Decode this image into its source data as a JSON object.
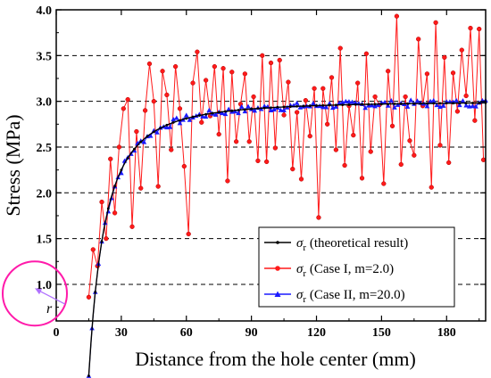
{
  "chart_data": {
    "type": "line",
    "xlabel": "Distance from the hole center (mm)",
    "ylabel": "Stress (MPa)",
    "xlim": [
      0,
      198
    ],
    "ylim": [
      0.6,
      4.0
    ],
    "x_ticks": [
      "0",
      "30",
      "60",
      "90",
      "120",
      "150",
      "180"
    ],
    "y_ticks": [
      "1.0",
      "1.5",
      "2.0",
      "2.5",
      "3.0",
      "3.5",
      "4.0"
    ],
    "grid": "horizontal-dashed",
    "legend_position": "bottom-right",
    "hole_radius_mm": 15,
    "radius_label": "r",
    "series": [
      {
        "name": "σr (theoretical result)",
        "legend_symbol": "σ",
        "legend_subscript": "r",
        "legend_suffix": " (theoretical result)",
        "color": "#000000",
        "marker": "dot",
        "x_start": 15,
        "x_end": 198,
        "x_step": 1,
        "formula": "3*(1 - (15/x)^2)"
      },
      {
        "name": "σr (Case I, m=2.0)",
        "legend_symbol": "σ",
        "legend_subscript": "r",
        "legend_suffix": " (Case I, m=2.0)",
        "color": "#ff1a1a",
        "marker": "circle",
        "x": [
          15,
          17,
          19,
          21,
          23,
          25,
          27,
          29,
          31,
          33,
          35,
          37,
          39,
          41,
          43,
          45,
          47,
          49,
          51,
          53,
          55,
          57,
          59,
          61,
          63,
          65,
          67,
          69,
          71,
          73,
          75,
          77,
          79,
          81,
          83,
          85,
          87,
          89,
          91,
          93,
          95,
          97,
          99,
          101,
          103,
          105,
          107,
          109,
          111,
          113,
          115,
          117,
          119,
          121,
          123,
          125,
          127,
          129,
          131,
          133,
          135,
          137,
          139,
          141,
          143,
          145,
          147,
          149,
          151,
          153,
          155,
          157,
          159,
          161,
          163,
          165,
          167,
          169,
          171,
          173,
          175,
          177,
          179,
          181,
          183,
          185,
          187,
          189,
          191,
          193,
          195,
          197
        ],
        "values": [
          0.86,
          1.38,
          1.2,
          1.9,
          1.5,
          2.37,
          1.78,
          2.5,
          2.92,
          3.02,
          1.63,
          2.67,
          2.05,
          2.9,
          3.41,
          3.0,
          2.07,
          3.33,
          3.07,
          2.47,
          3.38,
          2.92,
          2.29,
          1.55,
          3.2,
          3.54,
          2.77,
          3.23,
          2.84,
          3.38,
          2.64,
          3.36,
          2.13,
          3.32,
          2.56,
          2.97,
          3.3,
          2.56,
          3.05,
          2.35,
          3.5,
          2.34,
          3.42,
          2.49,
          3.45,
          2.85,
          3.21,
          2.26,
          2.88,
          2.15,
          3.01,
          2.62,
          3.14,
          1.73,
          3.14,
          2.75,
          3.26,
          2.47,
          3.58,
          2.3,
          2.95,
          2.63,
          3.2,
          2.16,
          3.52,
          2.45,
          3.05,
          2.96,
          2.1,
          3.33,
          2.73,
          3.93,
          2.31,
          3.05,
          2.57,
          2.41,
          3.68,
          2.95,
          3.3,
          2.06,
          3.86,
          2.52,
          3.48,
          2.33,
          3.31,
          2.89,
          3.56,
          3.06,
          3.8,
          2.79,
          3.79,
          2.36
        ]
      },
      {
        "name": "σr (Case II, m=20.0)",
        "legend_symbol": "σ",
        "legend_subscript": "r",
        "legend_suffix": " (Case II, m=20.0)",
        "color": "#1a1aff",
        "marker": "triangle",
        "x_start": 15,
        "x_end": 198,
        "x_step": 1.5,
        "formula": "3*(1 - (15/x)^2) + noise(±0.04)"
      }
    ]
  }
}
